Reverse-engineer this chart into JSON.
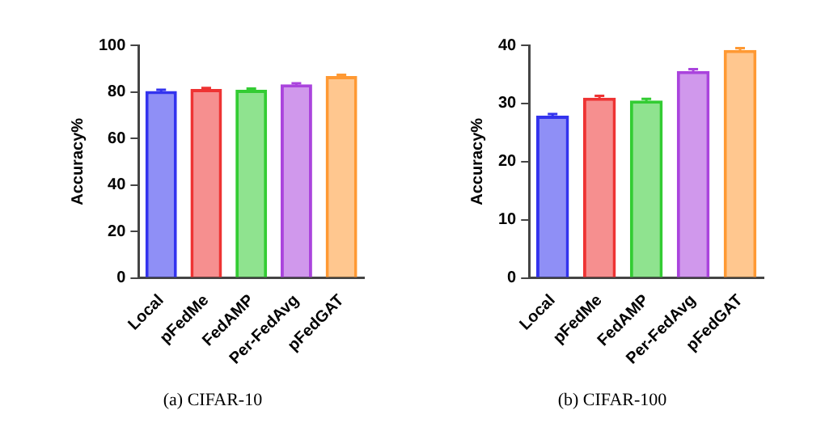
{
  "chart_data": [
    {
      "type": "bar",
      "title": "(a) CIFAR-10",
      "ylabel": "Accuracy%",
      "categories": [
        "Local",
        "pFedMe",
        "FedAMP",
        "Per-FedAvg",
        "pFedGAT"
      ],
      "values": [
        80.4,
        81.2,
        80.9,
        83.2,
        86.8
      ],
      "errors": [
        0.5,
        0.5,
        0.5,
        0.5,
        0.5
      ],
      "colors": [
        "#3333ee",
        "#ee3333",
        "#33cc33",
        "#aa44dd",
        "#ff9933"
      ],
      "ylim": [
        0,
        100
      ],
      "yticks": [
        0,
        20,
        40,
        60,
        80,
        100
      ],
      "grid": false,
      "legend": false
    },
    {
      "type": "bar",
      "title": "(b) CIFAR-100",
      "ylabel": "Accuracy%",
      "categories": [
        "Local",
        "pFedMe",
        "FedAMP",
        "Per-FedAvg",
        "pFedGAT"
      ],
      "values": [
        27.9,
        31.0,
        30.5,
        35.6,
        39.2
      ],
      "errors": [
        0.3,
        0.3,
        0.3,
        0.3,
        0.3
      ],
      "colors": [
        "#3333ee",
        "#ee3333",
        "#33cc33",
        "#aa44dd",
        "#ff9933"
      ],
      "ylim": [
        0,
        40
      ],
      "yticks": [
        0,
        10,
        20,
        30,
        40
      ],
      "grid": false,
      "legend": false
    }
  ]
}
